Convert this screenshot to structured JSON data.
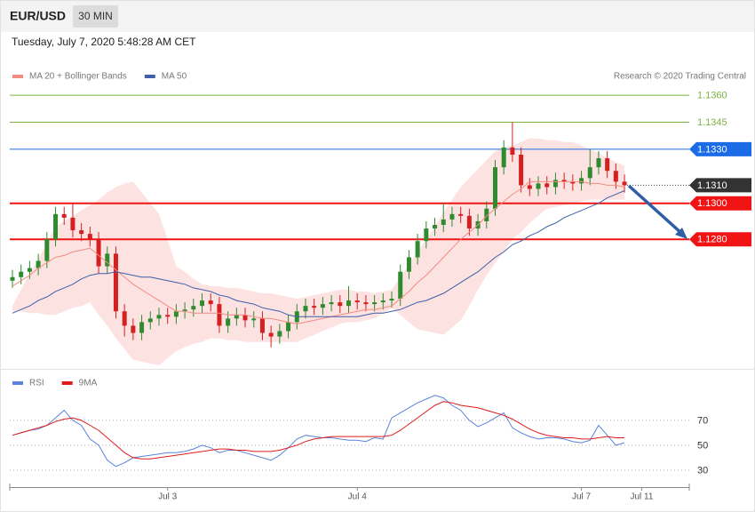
{
  "header": {
    "symbol": "EUR/USD",
    "interval": "30 MIN",
    "timestamp": "Tuesday, July 7, 2020 5:48:28 AM CET"
  },
  "chart_data": [
    {
      "type": "candlestick",
      "credit": "Research © 2020 Trading Central",
      "up_color": "#2e8b2e",
      "down_color": "#d42020",
      "ylim": [
        1.121,
        1.1366
      ],
      "levels": [
        {
          "value": 1.136,
          "label": "1.1360",
          "color": "#7cb342",
          "line": "thin",
          "tag": false
        },
        {
          "value": 1.1345,
          "label": "1.1345",
          "color": "#7cb342",
          "line": "thin",
          "tag": false
        },
        {
          "value": 1.133,
          "label": "1.1330",
          "color": "#1c6be6",
          "line": "thin",
          "tag": true
        },
        {
          "value": 1.131,
          "label": "1.1310",
          "color": "#333333",
          "line": "dotted",
          "tag": true
        },
        {
          "value": 1.13,
          "label": "1.1300",
          "color": "#f01414",
          "line": "thick",
          "tag": true
        },
        {
          "value": 1.128,
          "label": "1.1280",
          "color": "#f01414",
          "line": "thick",
          "tag": true
        }
      ],
      "open": [
        1.1257,
        1.1259,
        1.1262,
        1.1264,
        1.1268,
        1.128,
        1.1294,
        1.1292,
        1.1285,
        1.1283,
        1.128,
        1.1265,
        1.1272,
        1.124,
        1.1232,
        1.1228,
        1.1234,
        1.1236,
        1.1238,
        1.1237,
        1.124,
        1.1241,
        1.1243,
        1.1246,
        1.1244,
        1.1232,
        1.1236,
        1.1238,
        1.1235,
        1.1236,
        1.1228,
        1.1226,
        1.1229,
        1.1234,
        1.124,
        1.1243,
        1.1242,
        1.1244,
        1.1245,
        1.1243,
        1.1246,
        1.1245,
        1.1244,
        1.1245,
        1.1246,
        1.1247,
        1.1262,
        1.127,
        1.1279,
        1.1286,
        1.1288,
        1.1291,
        1.1294,
        1.1293,
        1.1286,
        1.129,
        1.1297,
        1.132,
        1.1331,
        1.1327,
        1.131,
        1.1308,
        1.1311,
        1.1309,
        1.1313,
        1.1312,
        1.1311,
        1.1314,
        1.132,
        1.1325,
        1.1318,
        1.1312,
        null,
        null,
        null,
        null,
        null,
        null,
        null
      ],
      "high": [
        1.1263,
        1.1266,
        1.1268,
        1.1272,
        1.1284,
        1.1298,
        1.1298,
        1.13,
        1.1289,
        1.1287,
        1.1284,
        1.1276,
        1.1276,
        1.1244,
        1.1236,
        1.1238,
        1.124,
        1.1242,
        1.1242,
        1.1244,
        1.1245,
        1.1247,
        1.125,
        1.125,
        1.1248,
        1.124,
        1.1242,
        1.1242,
        1.124,
        1.124,
        1.1232,
        1.1233,
        1.1238,
        1.1244,
        1.1247,
        1.1247,
        1.1248,
        1.1249,
        1.1249,
        1.1254,
        1.125,
        1.1249,
        1.1249,
        1.125,
        1.1251,
        1.1266,
        1.1274,
        1.1283,
        1.129,
        1.1292,
        1.13,
        1.1298,
        1.1298,
        1.1297,
        1.1294,
        1.1301,
        1.1324,
        1.1335,
        1.1345,
        1.1331,
        1.1314,
        1.1315,
        1.1315,
        1.1317,
        1.1317,
        1.1316,
        1.1318,
        1.133,
        1.1329,
        1.1329,
        1.1322,
        1.1316,
        null,
        null,
        null,
        null,
        null,
        null,
        null
      ],
      "low": [
        1.1253,
        1.1255,
        1.1258,
        1.126,
        1.1264,
        1.1276,
        1.1288,
        1.1281,
        1.1279,
        1.1276,
        1.1261,
        1.1261,
        1.1236,
        1.1226,
        1.1224,
        1.1224,
        1.123,
        1.1232,
        1.1233,
        1.1233,
        1.1236,
        1.1237,
        1.1239,
        1.124,
        1.1228,
        1.1228,
        1.1232,
        1.1231,
        1.1231,
        1.1224,
        1.122,
        1.1222,
        1.1225,
        1.123,
        1.1236,
        1.1238,
        1.1238,
        1.124,
        1.1239,
        1.1239,
        1.1241,
        1.124,
        1.124,
        1.1241,
        1.1242,
        1.1243,
        1.1258,
        1.1266,
        1.1275,
        1.1282,
        1.1284,
        1.1287,
        1.1289,
        1.1282,
        1.1282,
        1.1286,
        1.1293,
        1.1316,
        1.1323,
        1.1306,
        1.1304,
        1.1304,
        1.1305,
        1.1305,
        1.1308,
        1.1307,
        1.1307,
        1.131,
        1.1316,
        1.1314,
        1.1308,
        1.1306,
        null,
        null,
        null,
        null,
        null,
        null,
        null
      ],
      "close": [
        1.1259,
        1.1262,
        1.1264,
        1.1268,
        1.128,
        1.1294,
        1.1292,
        1.1285,
        1.1283,
        1.128,
        1.1265,
        1.1272,
        1.124,
        1.1232,
        1.1228,
        1.1234,
        1.1236,
        1.1238,
        1.1237,
        1.124,
        1.1241,
        1.1243,
        1.1246,
        1.1244,
        1.1232,
        1.1236,
        1.1238,
        1.1235,
        1.1236,
        1.1228,
        1.1226,
        1.1229,
        1.1234,
        1.124,
        1.1243,
        1.1242,
        1.1244,
        1.1245,
        1.1243,
        1.1246,
        1.1245,
        1.1244,
        1.1245,
        1.1246,
        1.1247,
        1.1262,
        1.127,
        1.1279,
        1.1286,
        1.1288,
        1.1291,
        1.1294,
        1.1293,
        1.1286,
        1.129,
        1.1297,
        1.132,
        1.1331,
        1.1327,
        1.131,
        1.1308,
        1.1311,
        1.1309,
        1.1313,
        1.1312,
        1.1311,
        1.1314,
        1.132,
        1.1325,
        1.1318,
        1.1312,
        1.131,
        null,
        null,
        null,
        null,
        null,
        null,
        null
      ],
      "series": [
        {
          "name": "MA 20 + Bollinger Bands",
          "color": "#f28b82",
          "band_color": "#fde2e2",
          "values": [
            1.1254,
            1.1257,
            1.126,
            1.1264,
            1.1267,
            1.127,
            1.1271,
            1.1273,
            1.1274,
            1.1275,
            1.1271,
            1.1267,
            1.1263,
            1.1259,
            1.1255,
            1.1252,
            1.1249,
            1.1246,
            1.1243,
            1.124,
            1.124,
            1.1239,
            1.1239,
            1.1239,
            1.1239,
            1.1238,
            1.1238,
            1.1238,
            1.1237,
            1.1236,
            1.1236,
            1.1235,
            1.1234,
            1.1233,
            1.1234,
            1.1235,
            1.1236,
            1.1237,
            1.1238,
            1.1239,
            1.124,
            1.1241,
            1.1241,
            1.1242,
            1.1243,
            1.1247,
            1.1251,
            1.1256,
            1.126,
            1.1265,
            1.127,
            1.1275,
            1.128,
            1.1284,
            1.1288,
            1.1293,
            1.1297,
            1.1301,
            1.1305,
            1.1308,
            1.1312,
            1.1312,
            1.1312,
            1.1312,
            1.1312,
            1.1312,
            1.1312,
            1.1311,
            1.1311,
            1.131,
            1.131,
            1.1309,
            null,
            null,
            null,
            null,
            null,
            null,
            null
          ],
          "upper": [
            1.1243,
            1.1252,
            1.1261,
            1.1269,
            1.1278,
            1.1287,
            1.129,
            1.1293,
            1.1296,
            1.1299,
            1.1302,
            1.1306,
            1.1309,
            1.1311,
            1.1312,
            1.1306,
            1.13,
            1.1294,
            1.128,
            1.1265,
            1.1262,
            1.1258,
            1.1255,
            1.1254,
            1.1254,
            1.1253,
            1.1253,
            1.1252,
            1.1251,
            1.125,
            1.125,
            1.1249,
            1.1248,
            1.1247,
            1.1248,
            1.1249,
            1.125,
            1.1251,
            1.1252,
            1.1252,
            1.1251,
            1.1251,
            1.125,
            1.1251,
            1.1252,
            1.1259,
            1.1266,
            1.1273,
            1.128,
            1.1287,
            1.1295,
            1.1302,
            1.1309,
            1.1314,
            1.1319,
            1.1324,
            1.1329,
            1.1331,
            1.1332,
            1.1334,
            1.1336,
            1.1336,
            1.1335,
            1.1335,
            1.1334,
            1.1334,
            1.1332,
            1.133,
            1.1328,
            1.1325,
            1.1323,
            1.1321,
            null,
            null,
            null,
            null,
            null,
            null,
            null
          ],
          "lower": [
            1.124,
            1.124,
            1.1239,
            1.1239,
            1.1238,
            1.1238,
            1.124,
            1.1242,
            1.1243,
            1.1245,
            1.1238,
            1.1232,
            1.1225,
            1.1219,
            1.1213,
            1.1212,
            1.1211,
            1.121,
            1.1214,
            1.1218,
            1.122,
            1.1222,
            1.1223,
            1.1225,
            1.1225,
            1.1224,
            1.1224,
            1.1223,
            1.1223,
            1.1223,
            1.1223,
            1.1223,
            1.1223,
            1.1223,
            1.1225,
            1.1227,
            1.1229,
            1.1231,
            1.1233,
            1.1234,
            1.1234,
            1.1235,
            1.1236,
            1.1239,
            1.1242,
            1.1238,
            1.1234,
            1.123,
            1.1229,
            1.1228,
            1.1227,
            1.1231,
            1.1235,
            1.1243,
            1.1252,
            1.126,
            1.1267,
            1.1273,
            1.128,
            1.1284,
            1.1289,
            1.1293,
            1.1297,
            1.1298,
            1.1299,
            1.13,
            1.1301,
            1.1302,
            1.1302,
            1.1302,
            1.1302,
            1.1302,
            null,
            null,
            null,
            null,
            null,
            null,
            null
          ]
        },
        {
          "name": "MA 50",
          "color": "#3c5fa8",
          "values": [
            1.1239,
            1.1241,
            1.1243,
            1.1246,
            1.1248,
            1.1251,
            1.1253,
            1.1255,
            1.1258,
            1.126,
            1.1261,
            1.1261,
            1.1262,
            1.1261,
            1.126,
            1.1259,
            1.1259,
            1.1258,
            1.1257,
            1.1256,
            1.1255,
            1.1253,
            1.1252,
            1.1251,
            1.1249,
            1.1248,
            1.1246,
            1.1245,
            1.1244,
            1.1242,
            1.1241,
            1.124,
            1.1238,
            1.1237,
            1.1237,
            1.1237,
            1.1237,
            1.1237,
            1.1237,
            1.1237,
            1.1237,
            1.1238,
            1.1239,
            1.1239,
            1.124,
            1.1241,
            1.1243,
            1.1245,
            1.1246,
            1.1248,
            1.125,
            1.1253,
            1.1256,
            1.1259,
            1.1262,
            1.1266,
            1.127,
            1.1273,
            1.1277,
            1.1279,
            1.1282,
            1.1284,
            1.1287,
            1.1289,
            1.1292,
            1.1294,
            1.1296,
            1.1298,
            1.13,
            1.1303,
            1.1305,
            1.1307,
            null,
            null,
            null,
            null,
            null,
            null,
            null
          ]
        }
      ]
    },
    {
      "type": "line",
      "categories": [
        null,
        null,
        null,
        null,
        null,
        null,
        null,
        null,
        null,
        null,
        null,
        null,
        null,
        null,
        null,
        null,
        null,
        null,
        "Jul 3",
        null,
        null,
        null,
        null,
        null,
        null,
        null,
        null,
        null,
        null,
        null,
        null,
        null,
        null,
        null,
        null,
        null,
        null,
        null,
        null,
        null,
        "Jul 4",
        null,
        null,
        null,
        null,
        null,
        null,
        null,
        null,
        null,
        null,
        null,
        null,
        null,
        null,
        null,
        null,
        null,
        null,
        null,
        null,
        null,
        null,
        null,
        null,
        null,
        "Jul 7",
        null,
        null,
        null,
        null,
        null,
        null,
        "Jul 11",
        null,
        null,
        null,
        null,
        null
      ],
      "ylim": [
        20,
        92
      ],
      "yticks": [
        30,
        50,
        70
      ],
      "series": [
        {
          "name": "RSI",
          "color": "#5b82dc",
          "values": [
            58,
            60,
            62,
            63,
            66,
            72,
            78,
            70,
            66,
            55,
            50,
            38,
            33,
            36,
            40,
            41,
            42,
            43,
            44,
            44,
            45,
            47,
            50,
            48,
            44,
            46,
            46,
            44,
            42,
            40,
            38,
            42,
            48,
            55,
            58,
            57,
            56,
            56,
            55,
            54,
            54,
            53,
            56,
            55,
            72,
            76,
            80,
            84,
            87,
            90,
            88,
            82,
            78,
            70,
            65,
            68,
            72,
            76,
            64,
            60,
            57,
            55,
            56,
            56,
            55,
            53,
            52,
            54,
            66,
            58,
            50,
            52,
            null,
            null,
            null,
            null,
            null,
            null,
            null
          ]
        },
        {
          "name": "9MA",
          "color": "#e01b1b",
          "values": [
            58,
            60,
            62,
            64,
            66,
            69,
            71,
            72,
            70,
            66,
            62,
            56,
            50,
            44,
            40,
            39,
            39,
            40,
            41,
            42,
            43,
            44,
            45,
            46,
            47,
            47,
            46,
            46,
            45,
            45,
            45,
            46,
            48,
            50,
            53,
            55,
            56,
            57,
            57,
            57,
            57,
            57,
            57,
            57,
            58,
            62,
            67,
            72,
            77,
            82,
            85,
            84,
            82,
            81,
            80,
            78,
            76,
            74,
            71,
            67,
            63,
            60,
            58,
            57,
            56,
            56,
            55,
            55,
            56,
            57,
            56,
            56,
            null,
            null,
            null,
            null,
            null,
            null,
            null
          ]
        }
      ]
    }
  ]
}
